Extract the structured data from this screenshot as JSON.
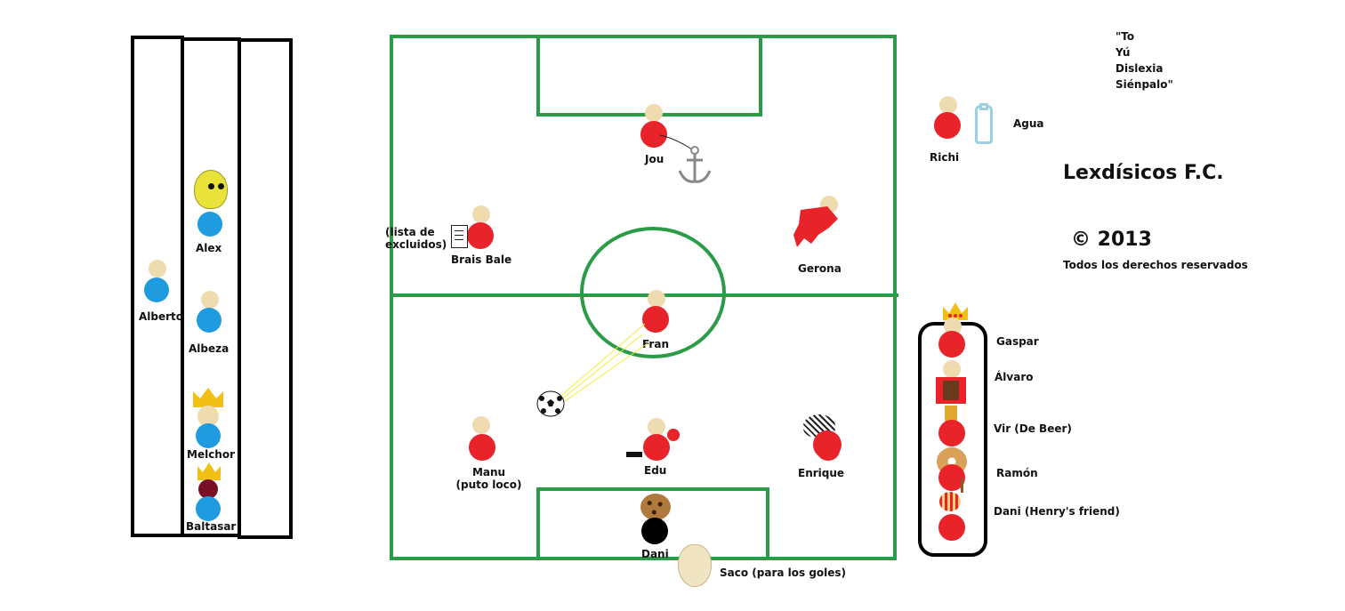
{
  "quote": {
    "line1": "\"To",
    "line2": "Yú",
    "line3": "Dislexia",
    "line4": "Siénpalo\""
  },
  "team": {
    "title": "Lexdísicos F.C.",
    "copyright": "© 2013",
    "rights": "Todos los derechos reservados"
  },
  "bench": {
    "players": [
      {
        "label": "Alex"
      },
      {
        "label": "Alberto"
      },
      {
        "label": "Albeza"
      },
      {
        "label": "Melchor"
      },
      {
        "label": "Baltasar"
      }
    ]
  },
  "field": {
    "players": {
      "jou": "Jou",
      "brais": "Brais Bale",
      "lista_line1": "(lista de",
      "lista_line2": "excluidos)",
      "gerona": "Gerona",
      "fran": "Fran",
      "manu_line1": "Manu",
      "manu_line2": "(puto loco)",
      "edu": "Edu",
      "enrique": "Enrique",
      "dani": "Dani"
    },
    "saco": "Saco (para los goles)"
  },
  "side": {
    "richi": "Richi",
    "agua": "Agua",
    "gaspar": "Gaspar",
    "alvaro": "Álvaro",
    "vir": "Vir  (De Beer)",
    "ramon": "Ramón",
    "dani2": "Dani (Henry's friend)"
  },
  "colors": {
    "field_green": "#2a9b46",
    "player_red": "#e8232a",
    "bench_blue": "#1f9be0",
    "skin": "#eedcb0"
  }
}
